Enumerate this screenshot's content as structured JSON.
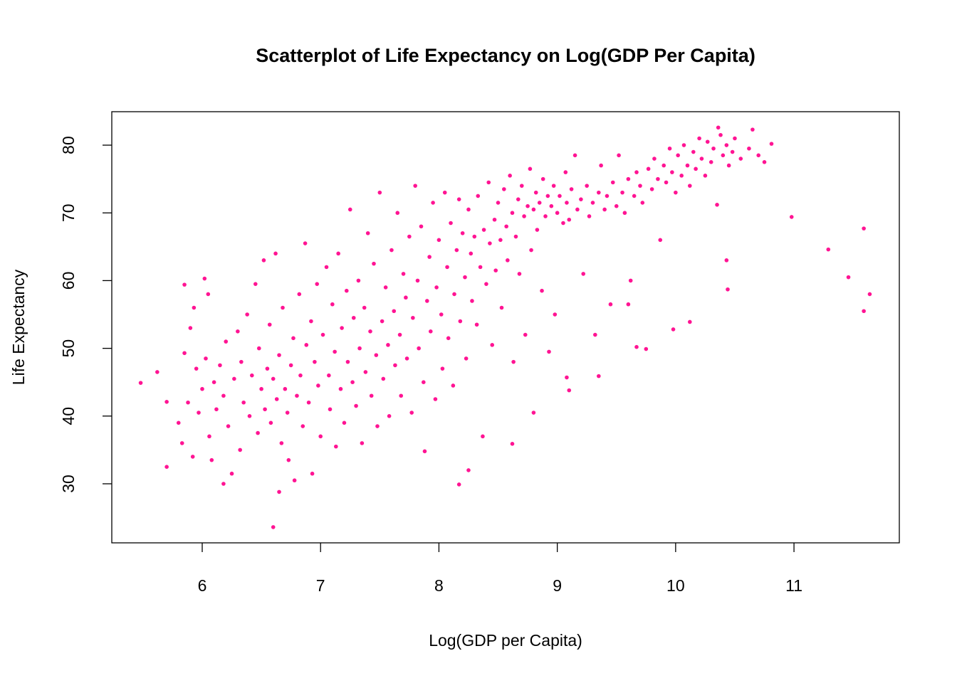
{
  "chart_data": {
    "type": "scatter",
    "title": "Scatterplot of Life Expectancy on Log(GDP Per Capita)",
    "x_label": "Log(GDP per Capita)",
    "y_label": "Life Expectancy",
    "color": "#ff1493",
    "xlim": [
      5.236,
      11.89
    ],
    "ylim": [
      21.28,
      84.94
    ],
    "xticks": [
      6,
      7,
      8,
      9,
      10,
      11
    ],
    "yticks": [
      30,
      40,
      50,
      60,
      70,
      80
    ],
    "x": [
      5.48,
      5.62,
      5.7,
      5.7,
      5.85,
      6.02,
      6.6,
      6.65,
      10.98,
      11.29,
      11.46,
      11.59,
      11.64,
      11.59,
      10.81,
      10.65,
      10.36,
      8.17,
      8.25,
      8.8,
      8.62,
      6.18,
      10.43,
      10.44,
      10.12,
      9.98,
      9.67,
      9.35,
      9.6,
      9.1,
      9.08,
      5.8,
      5.83,
      5.85,
      5.88,
      5.9,
      5.92,
      5.93,
      5.95,
      5.97,
      6.0,
      6.03,
      6.05,
      6.06,
      6.08,
      6.1,
      6.12,
      6.15,
      6.18,
      6.2,
      6.22,
      6.25,
      6.27,
      6.3,
      6.32,
      6.33,
      6.35,
      6.38,
      6.4,
      6.42,
      6.45,
      6.47,
      6.48,
      6.5,
      6.52,
      6.53,
      6.55,
      6.57,
      6.58,
      6.6,
      6.62,
      6.63,
      6.65,
      6.67,
      6.68,
      6.7,
      6.72,
      6.73,
      6.75,
      6.77,
      6.78,
      6.8,
      6.82,
      6.83,
      6.85,
      6.87,
      6.88,
      6.9,
      6.92,
      6.93,
      6.95,
      6.97,
      6.98,
      7.0,
      7.02,
      7.05,
      7.07,
      7.08,
      7.1,
      7.12,
      7.13,
      7.15,
      7.17,
      7.18,
      7.2,
      7.22,
      7.23,
      7.25,
      7.27,
      7.28,
      7.3,
      7.32,
      7.33,
      7.35,
      7.37,
      7.38,
      7.4,
      7.42,
      7.43,
      7.45,
      7.47,
      7.48,
      7.5,
      7.52,
      7.53,
      7.55,
      7.57,
      7.58,
      7.6,
      7.62,
      7.63,
      7.65,
      7.67,
      7.68,
      7.7,
      7.72,
      7.73,
      7.75,
      7.77,
      7.78,
      7.8,
      7.82,
      7.83,
      7.85,
      7.87,
      7.88,
      7.9,
      7.92,
      7.93,
      7.95,
      7.97,
      7.98,
      8.0,
      8.02,
      8.03,
      8.05,
      8.07,
      8.08,
      8.1,
      8.12,
      8.13,
      8.15,
      8.17,
      8.18,
      8.2,
      8.22,
      8.23,
      8.25,
      8.27,
      8.28,
      8.3,
      8.32,
      8.33,
      8.35,
      8.37,
      8.38,
      8.4,
      8.42,
      8.43,
      8.45,
      8.47,
      8.48,
      8.5,
      8.52,
      8.53,
      8.55,
      8.57,
      8.58,
      8.6,
      8.62,
      8.63,
      8.65,
      8.67,
      8.68,
      8.7,
      8.72,
      8.73,
      8.75,
      8.77,
      8.78,
      8.8,
      8.82,
      8.83,
      8.85,
      8.87,
      8.88,
      8.9,
      8.92,
      8.93,
      8.95,
      8.97,
      8.98,
      9.0,
      9.02,
      9.05,
      9.07,
      9.08,
      9.1,
      9.12,
      9.15,
      9.17,
      9.2,
      9.22,
      9.25,
      9.27,
      9.3,
      9.32,
      9.35,
      9.37,
      9.4,
      9.42,
      9.45,
      9.47,
      9.5,
      9.52,
      9.55,
      9.57,
      9.6,
      9.62,
      9.65,
      9.67,
      9.7,
      9.72,
      9.75,
      9.77,
      9.8,
      9.82,
      9.85,
      9.87,
      9.9,
      9.92,
      9.95,
      9.97,
      10.0,
      10.02,
      10.05,
      10.07,
      10.1,
      10.12,
      10.15,
      10.17,
      10.2,
      10.22,
      10.25,
      10.27,
      10.3,
      10.32,
      10.35,
      10.38,
      10.4,
      10.43,
      10.45,
      10.48,
      10.5,
      10.55,
      10.62,
      10.7,
      10.75
    ],
    "values": [
      44.9,
      46.5,
      32.5,
      42.1,
      59.4,
      60.3,
      23.6,
      28.8,
      69.4,
      64.6,
      60.5,
      67.7,
      58.0,
      55.5,
      80.2,
      82.3,
      82.6,
      29.9,
      32.0,
      40.5,
      35.9,
      30.0,
      63.0,
      58.7,
      53.9,
      52.8,
      50.2,
      45.9,
      56.5,
      43.8,
      45.7,
      39.0,
      36.0,
      49.3,
      42.0,
      53.0,
      34.0,
      56.0,
      47.0,
      40.5,
      44.0,
      48.5,
      58.0,
      37.0,
      33.5,
      45.0,
      41.0,
      47.5,
      43.0,
      51.0,
      38.5,
      31.5,
      45.5,
      52.5,
      35.0,
      48.0,
      42.0,
      55.0,
      40.0,
      46.0,
      59.5,
      37.5,
      50.0,
      44.0,
      63.0,
      41.0,
      47.0,
      53.5,
      39.0,
      45.5,
      64.0,
      42.5,
      49.0,
      36.0,
      56.0,
      44.0,
      40.5,
      33.5,
      47.5,
      51.5,
      30.5,
      43.0,
      58.0,
      46.0,
      38.5,
      65.5,
      50.5,
      42.0,
      54.0,
      31.5,
      48.0,
      59.5,
      44.5,
      37.0,
      52.0,
      62.0,
      46.0,
      41.0,
      56.5,
      49.5,
      35.5,
      64.0,
      44.0,
      53.0,
      39.0,
      58.5,
      48.0,
      70.5,
      45.0,
      54.5,
      41.5,
      60.0,
      50.0,
      36.0,
      56.0,
      46.5,
      67.0,
      52.5,
      43.0,
      62.5,
      49.0,
      38.5,
      73.0,
      54.0,
      45.5,
      59.0,
      50.5,
      40.0,
      64.5,
      55.5,
      47.5,
      70.0,
      52.0,
      43.0,
      61.0,
      57.5,
      48.5,
      66.5,
      40.5,
      54.5,
      74.0,
      60.0,
      50.0,
      68.0,
      45.0,
      34.8,
      57.0,
      63.5,
      52.5,
      71.5,
      42.5,
      59.0,
      66.0,
      55.0,
      47.0,
      73.0,
      62.0,
      51.5,
      68.5,
      44.5,
      58.0,
      64.5,
      72.0,
      54.0,
      67.0,
      60.5,
      48.5,
      70.5,
      64.0,
      57.0,
      66.5,
      53.5,
      72.5,
      62.0,
      37.0,
      67.5,
      59.5,
      74.5,
      65.5,
      50.5,
      69.0,
      61.5,
      71.5,
      66.0,
      56.0,
      73.5,
      68.0,
      63.0,
      75.5,
      70.0,
      48.0,
      66.5,
      72.0,
      61.0,
      74.0,
      69.5,
      52.0,
      71.0,
      76.5,
      64.5,
      70.5,
      73.0,
      67.5,
      71.5,
      58.5,
      75.0,
      69.5,
      72.5,
      49.5,
      71.0,
      74.0,
      55.0,
      70.0,
      72.5,
      68.5,
      76.0,
      71.5,
      69.0,
      73.5,
      78.5,
      70.5,
      72.0,
      61.0,
      74.0,
      69.5,
      71.5,
      52.0,
      73.0,
      77.0,
      70.5,
      72.5,
      56.5,
      74.5,
      71.0,
      78.5,
      73.0,
      70.0,
      75.0,
      60.0,
      72.5,
      76.0,
      74.0,
      71.5,
      49.9,
      76.5,
      73.5,
      78.0,
      75.0,
      66.0,
      77.0,
      74.5,
      79.5,
      76.0,
      73.0,
      78.5,
      75.5,
      80.0,
      77.0,
      74.0,
      79.0,
      76.5,
      81.0,
      78.0,
      75.5,
      80.5,
      77.5,
      79.5,
      71.2,
      81.5,
      78.5,
      80.0,
      77.0,
      79.0,
      81.0,
      78.0,
      79.5,
      78.5,
      77.5
    ]
  }
}
